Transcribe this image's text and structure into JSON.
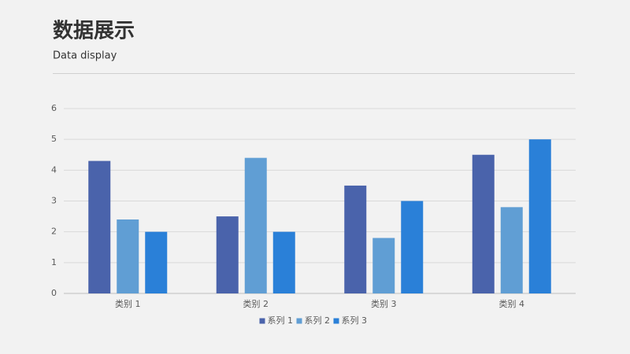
{
  "header": {
    "title": "数据展示",
    "subtitle": "Data display"
  },
  "chart_data": {
    "type": "bar",
    "categories": [
      "类别 1",
      "类别 2",
      "类别 3",
      "类别 4"
    ],
    "series": [
      {
        "name": "系列 1",
        "color": "#4a63ab",
        "values": [
          4.3,
          2.5,
          3.5,
          4.5
        ]
      },
      {
        "name": "系列 2",
        "color": "#609ed4",
        "values": [
          2.4,
          4.4,
          1.8,
          2.8
        ]
      },
      {
        "name": "系列 3",
        "color": "#2a80d8",
        "values": [
          2,
          2,
          3,
          5
        ]
      }
    ],
    "ylim": [
      0,
      6
    ],
    "yticks": [
      0,
      1,
      2,
      3,
      4,
      5,
      6
    ],
    "grid": true,
    "legend": "bottom"
  }
}
